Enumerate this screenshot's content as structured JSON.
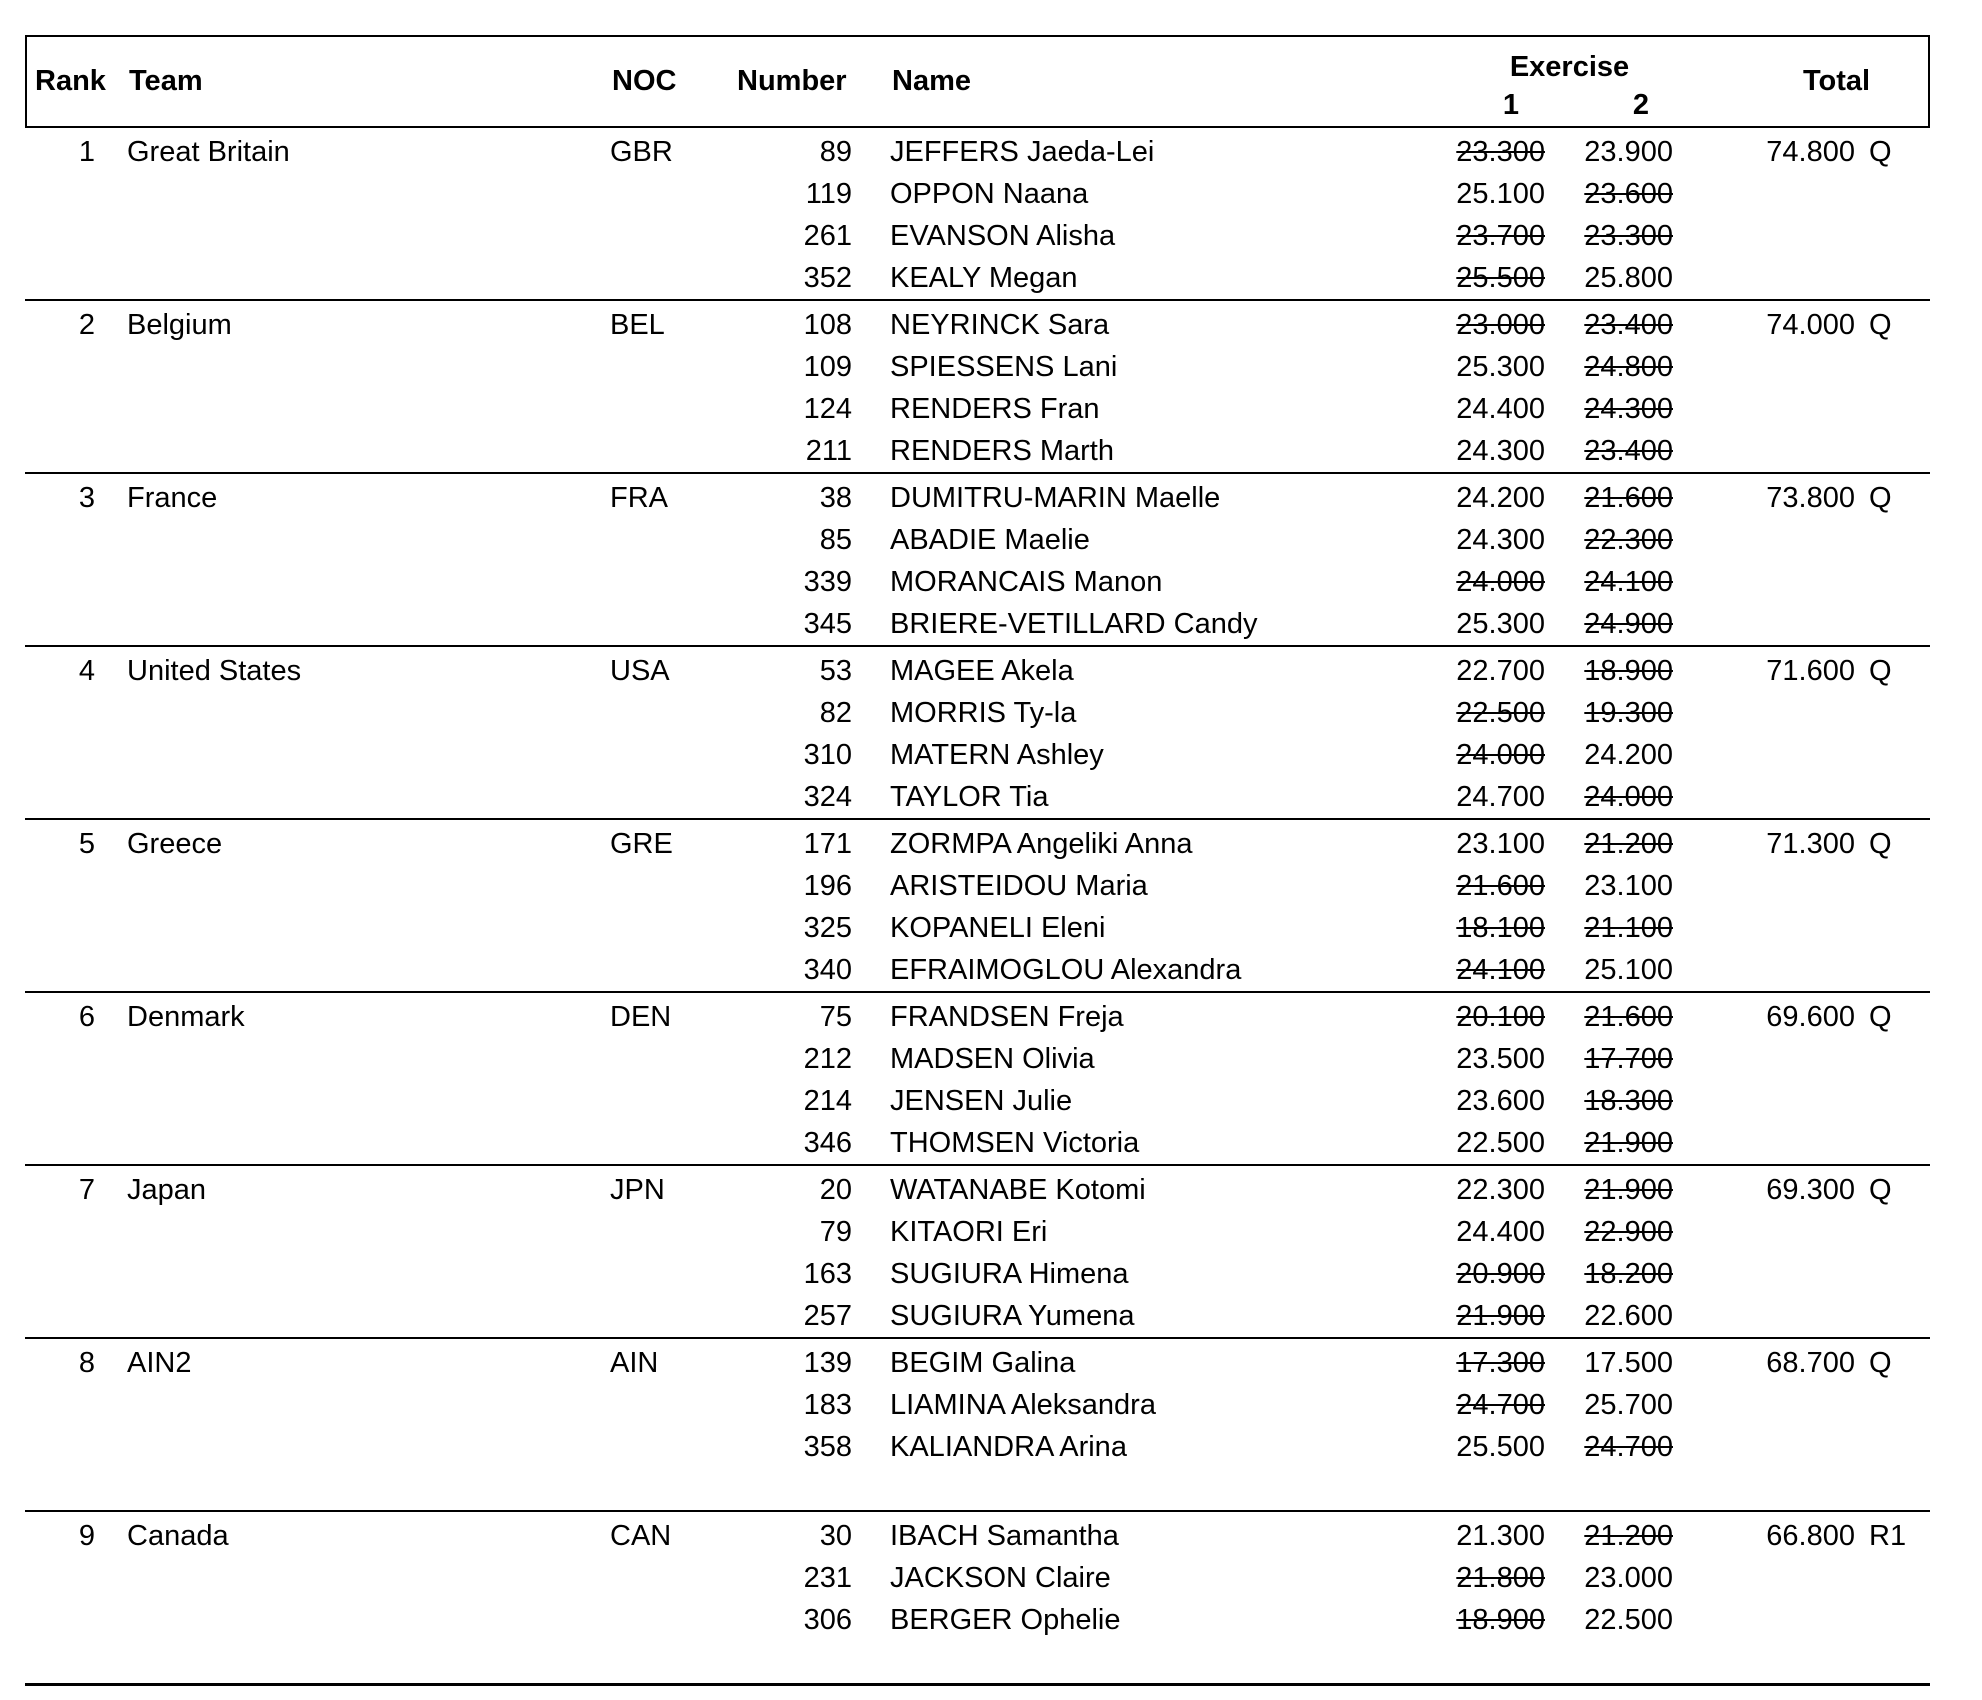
{
  "header": {
    "rank": "Rank",
    "team": "Team",
    "noc": "NOC",
    "number": "Number",
    "name": "Name",
    "exercise": "Exercise",
    "ex1": "1",
    "ex2": "2",
    "total": "Total"
  },
  "teams": [
    {
      "rank": "1",
      "team": "Great Britain",
      "noc": "GBR",
      "total": "74.800",
      "qualifier": "Q",
      "athletes": [
        {
          "number": "89",
          "name": "JEFFERS Jaeda-Lei",
          "ex1": {
            "value": "23.300",
            "struck": true
          },
          "ex2": {
            "value": "23.900",
            "struck": false
          }
        },
        {
          "number": "119",
          "name": "OPPON Naana",
          "ex1": {
            "value": "25.100",
            "struck": false
          },
          "ex2": {
            "value": "23.600",
            "struck": true
          }
        },
        {
          "number": "261",
          "name": "EVANSON Alisha",
          "ex1": {
            "value": "23.700",
            "struck": true
          },
          "ex2": {
            "value": "23.300",
            "struck": true
          }
        },
        {
          "number": "352",
          "name": "KEALY Megan",
          "ex1": {
            "value": "25.500",
            "struck": true
          },
          "ex2": {
            "value": "25.800",
            "struck": false
          }
        }
      ]
    },
    {
      "rank": "2",
      "team": "Belgium",
      "noc": "BEL",
      "total": "74.000",
      "qualifier": "Q",
      "athletes": [
        {
          "number": "108",
          "name": "NEYRINCK Sara",
          "ex1": {
            "value": "23.000",
            "struck": true
          },
          "ex2": {
            "value": "23.400",
            "struck": true
          }
        },
        {
          "number": "109",
          "name": "SPIESSENS Lani",
          "ex1": {
            "value": "25.300",
            "struck": false
          },
          "ex2": {
            "value": "24.800",
            "struck": true
          }
        },
        {
          "number": "124",
          "name": "RENDERS Fran",
          "ex1": {
            "value": "24.400",
            "struck": false
          },
          "ex2": {
            "value": "24.300",
            "struck": true
          }
        },
        {
          "number": "211",
          "name": "RENDERS Marth",
          "ex1": {
            "value": "24.300",
            "struck": false
          },
          "ex2": {
            "value": "23.400",
            "struck": true
          }
        }
      ]
    },
    {
      "rank": "3",
      "team": "France",
      "noc": "FRA",
      "total": "73.800",
      "qualifier": "Q",
      "athletes": [
        {
          "number": "38",
          "name": "DUMITRU-MARIN Maelle",
          "ex1": {
            "value": "24.200",
            "struck": false
          },
          "ex2": {
            "value": "21.600",
            "struck": true
          }
        },
        {
          "number": "85",
          "name": "ABADIE Maelie",
          "ex1": {
            "value": "24.300",
            "struck": false
          },
          "ex2": {
            "value": "22.300",
            "struck": true
          }
        },
        {
          "number": "339",
          "name": "MORANCAIS Manon",
          "ex1": {
            "value": "24.000",
            "struck": true
          },
          "ex2": {
            "value": "24.100",
            "struck": true
          }
        },
        {
          "number": "345",
          "name": "BRIERE-VETILLARD Candy",
          "ex1": {
            "value": "25.300",
            "struck": false
          },
          "ex2": {
            "value": "24.900",
            "struck": true
          }
        }
      ]
    },
    {
      "rank": "4",
      "team": "United States",
      "noc": "USA",
      "total": "71.600",
      "qualifier": "Q",
      "athletes": [
        {
          "number": "53",
          "name": "MAGEE Akela",
          "ex1": {
            "value": "22.700",
            "struck": false
          },
          "ex2": {
            "value": "18.900",
            "struck": true
          }
        },
        {
          "number": "82",
          "name": "MORRIS Ty-la",
          "ex1": {
            "value": "22.500",
            "struck": true
          },
          "ex2": {
            "value": "19.300",
            "struck": true
          }
        },
        {
          "number": "310",
          "name": "MATERN Ashley",
          "ex1": {
            "value": "24.000",
            "struck": true
          },
          "ex2": {
            "value": "24.200",
            "struck": false
          }
        },
        {
          "number": "324",
          "name": "TAYLOR Tia",
          "ex1": {
            "value": "24.700",
            "struck": false
          },
          "ex2": {
            "value": "24.000",
            "struck": true
          }
        }
      ]
    },
    {
      "rank": "5",
      "team": "Greece",
      "noc": "GRE",
      "total": "71.300",
      "qualifier": "Q",
      "athletes": [
        {
          "number": "171",
          "name": "ZORMPA Angeliki Anna",
          "ex1": {
            "value": "23.100",
            "struck": false
          },
          "ex2": {
            "value": "21.200",
            "struck": true
          }
        },
        {
          "number": "196",
          "name": "ARISTEIDOU Maria",
          "ex1": {
            "value": "21.600",
            "struck": true
          },
          "ex2": {
            "value": "23.100",
            "struck": false
          }
        },
        {
          "number": "325",
          "name": "KOPANELI Eleni",
          "ex1": {
            "value": "18.100",
            "struck": true
          },
          "ex2": {
            "value": "21.100",
            "struck": true
          }
        },
        {
          "number": "340",
          "name": "EFRAIMOGLOU Alexandra",
          "ex1": {
            "value": "24.100",
            "struck": true
          },
          "ex2": {
            "value": "25.100",
            "struck": false
          }
        }
      ]
    },
    {
      "rank": "6",
      "team": "Denmark",
      "noc": "DEN",
      "total": "69.600",
      "qualifier": "Q",
      "athletes": [
        {
          "number": "75",
          "name": "FRANDSEN Freja",
          "ex1": {
            "value": "20.100",
            "struck": true
          },
          "ex2": {
            "value": "21.600",
            "struck": true
          }
        },
        {
          "number": "212",
          "name": "MADSEN Olivia",
          "ex1": {
            "value": "23.500",
            "struck": false
          },
          "ex2": {
            "value": "17.700",
            "struck": true
          }
        },
        {
          "number": "214",
          "name": "JENSEN Julie",
          "ex1": {
            "value": "23.600",
            "struck": false
          },
          "ex2": {
            "value": "18.300",
            "struck": true
          }
        },
        {
          "number": "346",
          "name": "THOMSEN Victoria",
          "ex1": {
            "value": "22.500",
            "struck": false
          },
          "ex2": {
            "value": "21.900",
            "struck": true
          }
        }
      ]
    },
    {
      "rank": "7",
      "team": "Japan",
      "noc": "JPN",
      "total": "69.300",
      "qualifier": "Q",
      "athletes": [
        {
          "number": "20",
          "name": "WATANABE Kotomi",
          "ex1": {
            "value": "22.300",
            "struck": false
          },
          "ex2": {
            "value": "21.900",
            "struck": true
          }
        },
        {
          "number": "79",
          "name": "KITAORI Eri",
          "ex1": {
            "value": "24.400",
            "struck": false
          },
          "ex2": {
            "value": "22.900",
            "struck": true
          }
        },
        {
          "number": "163",
          "name": "SUGIURA Himena",
          "ex1": {
            "value": "20.900",
            "struck": true
          },
          "ex2": {
            "value": "18.200",
            "struck": true
          }
        },
        {
          "number": "257",
          "name": "SUGIURA Yumena",
          "ex1": {
            "value": "21.900",
            "struck": true
          },
          "ex2": {
            "value": "22.600",
            "struck": false
          }
        }
      ]
    },
    {
      "rank": "8",
      "team": "AIN2",
      "noc": "AIN",
      "total": "68.700",
      "qualifier": "Q",
      "athletes": [
        {
          "number": "139",
          "name": "BEGIM Galina",
          "ex1": {
            "value": "17.300",
            "struck": true
          },
          "ex2": {
            "value": "17.500",
            "struck": false
          }
        },
        {
          "number": "183",
          "name": "LIAMINA Aleksandra",
          "ex1": {
            "value": "24.700",
            "struck": true
          },
          "ex2": {
            "value": "25.700",
            "struck": false
          }
        },
        {
          "number": "358",
          "name": "KALIANDRA Arina",
          "ex1": {
            "value": "25.500",
            "struck": false
          },
          "ex2": {
            "value": "24.700",
            "struck": true
          }
        }
      ]
    },
    {
      "rank": "9",
      "team": "Canada",
      "noc": "CAN",
      "total": "66.800",
      "qualifier": "R1",
      "athletes": [
        {
          "number": "30",
          "name": "IBACH Samantha",
          "ex1": {
            "value": "21.300",
            "struck": false
          },
          "ex2": {
            "value": "21.200",
            "struck": true
          }
        },
        {
          "number": "231",
          "name": "JACKSON Claire",
          "ex1": {
            "value": "21.800",
            "struck": true
          },
          "ex2": {
            "value": "23.000",
            "struck": false
          }
        },
        {
          "number": "306",
          "name": "BERGER Ophelie",
          "ex1": {
            "value": "18.900",
            "struck": true
          },
          "ex2": {
            "value": "22.500",
            "struck": false
          }
        }
      ]
    }
  ]
}
